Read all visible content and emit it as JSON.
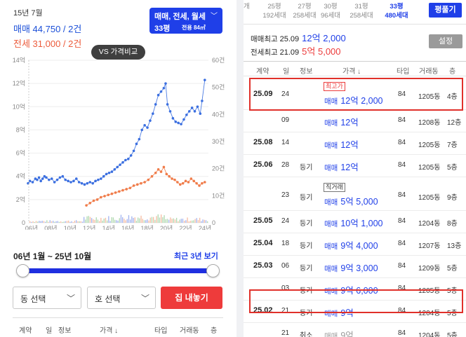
{
  "left": {
    "date": "15년 7월",
    "trade_summary": "매매 44,750 / 2건",
    "jeonse_summary": "전세 31,000 / 2건",
    "type_filter": {
      "line1": "매매, 전세, 월세",
      "line2": "33평",
      "line3": "전용 84㎡"
    },
    "vs_button": "VS 가격비교",
    "range_text": "06년 1월 ~ 25년 10월",
    "recent_button": "최근 3년 보기",
    "slider": {
      "start": 0.0,
      "end": 1.0
    },
    "dong_select": "동 선택",
    "ho_select": "호 선택",
    "list_button": "집 내놓기",
    "table_header": {
      "contract": "계약",
      "day": "일",
      "info": "정보",
      "price": "가격 ↓",
      "type": "타입",
      "dong": "거래동",
      "floor": "층"
    },
    "colors": {
      "trade": "#1b4fd8",
      "jeonse": "#ec5b3b",
      "accent": "#1f3fe8",
      "button_red": "#ee3b3b"
    }
  },
  "chart_data": {
    "type": "scatter",
    "x_ticks": [
      "06년",
      "08년",
      "10년",
      "12년",
      "14년",
      "16년",
      "18년",
      "20년",
      "22년",
      "24년"
    ],
    "y_left_ticks": [
      "0",
      "2억",
      "4억",
      "6억",
      "8억",
      "10억",
      "12억",
      "14억"
    ],
    "y_right_ticks": [
      "0",
      "10건",
      "20건",
      "30건",
      "40건",
      "50건",
      "60건"
    ],
    "y_left_range": [
      0,
      14
    ],
    "y_right_range": [
      0,
      60
    ],
    "x_range": [
      2006.0,
      2025.8
    ],
    "series": [
      {
        "color": "#3b6fe0",
        "points": [
          [
            2006.0,
            3.4
          ],
          [
            2006.2,
            3.6
          ],
          [
            2006.5,
            3.5
          ],
          [
            2006.8,
            3.8
          ],
          [
            2007.0,
            3.7
          ],
          [
            2007.2,
            3.9
          ],
          [
            2007.4,
            3.6
          ],
          [
            2007.6,
            3.8
          ],
          [
            2007.8,
            4.0
          ],
          [
            2008.0,
            3.9
          ],
          [
            2008.3,
            3.7
          ],
          [
            2008.6,
            3.8
          ],
          [
            2008.9,
            3.5
          ],
          [
            2009.2,
            3.7
          ],
          [
            2009.5,
            3.9
          ],
          [
            2009.8,
            4.0
          ],
          [
            2010.1,
            3.7
          ],
          [
            2010.4,
            3.6
          ],
          [
            2010.7,
            3.5
          ],
          [
            2011.0,
            3.6
          ],
          [
            2011.3,
            3.8
          ],
          [
            2011.6,
            3.5
          ],
          [
            2011.9,
            3.4
          ],
          [
            2012.2,
            3.3
          ],
          [
            2012.5,
            3.4
          ],
          [
            2012.8,
            3.5
          ],
          [
            2013.1,
            3.4
          ],
          [
            2013.4,
            3.6
          ],
          [
            2013.7,
            3.7
          ],
          [
            2014.0,
            3.8
          ],
          [
            2014.3,
            4.0
          ],
          [
            2014.6,
            4.2
          ],
          [
            2014.9,
            4.3
          ],
          [
            2015.2,
            4.4
          ],
          [
            2015.5,
            4.6
          ],
          [
            2015.8,
            4.8
          ],
          [
            2016.1,
            5.0
          ],
          [
            2016.4,
            5.2
          ],
          [
            2016.7,
            5.4
          ],
          [
            2017.0,
            5.5
          ],
          [
            2017.3,
            5.8
          ],
          [
            2017.6,
            6.2
          ],
          [
            2017.9,
            6.8
          ],
          [
            2018.2,
            7.2
          ],
          [
            2018.5,
            8.0
          ],
          [
            2018.8,
            8.4
          ],
          [
            2019.1,
            8.2
          ],
          [
            2019.4,
            8.8
          ],
          [
            2019.7,
            9.4
          ],
          [
            2020.0,
            10.2
          ],
          [
            2020.3,
            11.0
          ],
          [
            2020.6,
            11.3
          ],
          [
            2020.9,
            11.6
          ],
          [
            2021.1,
            12.0
          ],
          [
            2021.3,
            10.2
          ],
          [
            2021.6,
            9.6
          ],
          [
            2021.9,
            9.0
          ],
          [
            2022.2,
            8.7
          ],
          [
            2022.5,
            8.6
          ],
          [
            2022.8,
            8.5
          ],
          [
            2023.1,
            8.9
          ],
          [
            2023.4,
            9.3
          ],
          [
            2023.7,
            9.6
          ],
          [
            2024.0,
            9.9
          ],
          [
            2024.3,
            9.6
          ],
          [
            2024.6,
            10.0
          ],
          [
            2024.9,
            9.4
          ],
          [
            2025.1,
            10.5
          ],
          [
            2025.4,
            12.3
          ]
        ]
      },
      {
        "color": "#f07c4a",
        "points": [
          [
            2012.4,
            1.5
          ],
          [
            2012.8,
            1.7
          ],
          [
            2013.2,
            1.9
          ],
          [
            2013.6,
            2.0
          ],
          [
            2014.0,
            2.2
          ],
          [
            2014.4,
            2.3
          ],
          [
            2014.8,
            2.4
          ],
          [
            2015.2,
            2.5
          ],
          [
            2015.6,
            2.6
          ],
          [
            2016.0,
            2.7
          ],
          [
            2016.4,
            2.8
          ],
          [
            2016.8,
            2.9
          ],
          [
            2017.2,
            3.0
          ],
          [
            2017.6,
            3.2
          ],
          [
            2018.0,
            3.3
          ],
          [
            2018.4,
            3.4
          ],
          [
            2018.8,
            3.5
          ],
          [
            2019.2,
            3.7
          ],
          [
            2019.6,
            4.0
          ],
          [
            2020.0,
            4.3
          ],
          [
            2020.3,
            4.6
          ],
          [
            2020.6,
            4.4
          ],
          [
            2020.9,
            4.8
          ],
          [
            2021.2,
            4.2
          ],
          [
            2021.5,
            4.0
          ],
          [
            2021.8,
            3.8
          ],
          [
            2022.1,
            3.7
          ],
          [
            2022.4,
            3.5
          ],
          [
            2022.7,
            3.3
          ],
          [
            2023.0,
            3.4
          ],
          [
            2023.3,
            3.6
          ],
          [
            2023.6,
            3.5
          ],
          [
            2023.9,
            3.8
          ],
          [
            2024.2,
            3.6
          ],
          [
            2024.5,
            3.4
          ],
          [
            2024.8,
            3.2
          ],
          [
            2025.1,
            3.4
          ],
          [
            2025.4,
            3.5
          ]
        ]
      }
    ]
  },
  "right": {
    "size_tabs": [
      {
        "top": "",
        "bottom": "개"
      },
      {
        "top": "25평",
        "bottom": "192세대"
      },
      {
        "top": "27평",
        "bottom": "258세대"
      },
      {
        "top": "30평",
        "bottom": "96세대"
      },
      {
        "top": "31평",
        "bottom": "258세대"
      },
      {
        "top": "33평",
        "bottom": "480세대"
      }
    ],
    "pyeong_button": "평풀기",
    "trade_max": {
      "label": "매매최고",
      "date": "25.09",
      "price": "12억 2,000"
    },
    "jeonse_max": {
      "label": "전세최고",
      "date": "21.09",
      "price": "5억 5,000"
    },
    "setting_button": "설정",
    "table_header": {
      "contract": "계약",
      "day": "일",
      "info": "정보",
      "price": "가격 ↓",
      "type": "타입",
      "dong": "거래동",
      "floor": "층"
    },
    "rows": [
      {
        "ym": "25.09",
        "day": "24",
        "info": "",
        "badge": "최고가",
        "type": "매매",
        "price": "12억 2,000",
        "area": "84",
        "dong": "1205동",
        "floor": "4층"
      },
      {
        "ym": "",
        "day": "09",
        "info": "",
        "badge": "",
        "type": "매매",
        "price": "12억",
        "area": "84",
        "dong": "1208동",
        "floor": "12층"
      },
      {
        "ym": "25.08",
        "day": "14",
        "info": "",
        "badge": "",
        "type": "매매",
        "price": "12억",
        "area": "84",
        "dong": "1205동",
        "floor": "7층"
      },
      {
        "ym": "25.06",
        "day": "28",
        "info": "등기",
        "badge": "",
        "type": "매매",
        "price": "12억",
        "area": "84",
        "dong": "1205동",
        "floor": "5층"
      },
      {
        "ym": "",
        "day": "23",
        "info": "등기",
        "badge": "직거래",
        "type": "매매",
        "price": "5억 5,000",
        "area": "84",
        "dong": "1205동",
        "floor": "9층"
      },
      {
        "ym": "25.05",
        "day": "24",
        "info": "등기",
        "badge": "",
        "type": "매매",
        "price": "10억 1,000",
        "area": "84",
        "dong": "1204동",
        "floor": "8층"
      },
      {
        "ym": "25.04",
        "day": "18",
        "info": "등기",
        "badge": "",
        "type": "매매",
        "price": "9억 4,000",
        "area": "84",
        "dong": "1207동",
        "floor": "13층"
      },
      {
        "ym": "25.03",
        "day": "06",
        "info": "등기",
        "badge": "",
        "type": "매매",
        "price": "9억 3,000",
        "area": "84",
        "dong": "1209동",
        "floor": "5층"
      },
      {
        "ym": "",
        "day": "03",
        "info": "등기",
        "badge": "",
        "type": "매매",
        "price": "9억 6,000",
        "area": "84",
        "dong": "1205동",
        "floor": "5층"
      },
      {
        "ym": "25.02",
        "day": "21",
        "info": "등기",
        "badge": "",
        "type": "매매",
        "price": "9억",
        "area": "84",
        "dong": "1204동",
        "floor": "5층"
      },
      {
        "ym": "",
        "day": "21",
        "info": "취소",
        "badge": "",
        "type": "매매",
        "price": "9억",
        "area": "84",
        "dong": "1204동",
        "floor": "5층",
        "cancelled": true
      }
    ]
  }
}
